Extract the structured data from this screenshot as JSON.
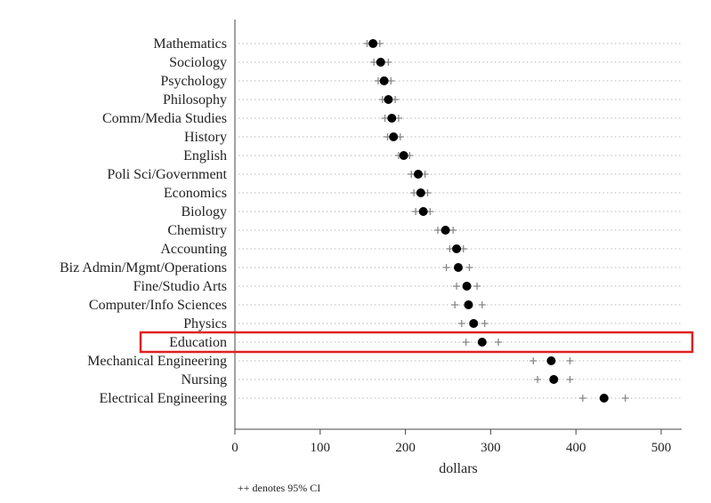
{
  "chart_data": {
    "type": "scatter",
    "xlabel": "dollars",
    "xlim": [
      0,
      520
    ],
    "xticks": [
      0,
      100,
      200,
      300,
      400,
      500
    ],
    "footnote": "++ denotes 95% CI",
    "highlight": "Education",
    "highlight_color": "#e02020",
    "point_color": "#000000",
    "ci_color": "#888888",
    "grid": "dotted horizontal per category",
    "categories": [
      "Mathematics",
      "Sociology",
      "Psychology",
      "Philosophy",
      "Comm/Media Studies",
      "History",
      "English",
      "Poli Sci/Government",
      "Economics",
      "Biology",
      "Chemistry",
      "Accounting",
      "Biz Admin/Mgmt/Operations",
      "Fine/Studio Arts",
      "Computer/Info Sciences",
      "Physics",
      "Education",
      "Mechanical Engineering",
      "Nursing",
      "Electrical Engineering"
    ],
    "values": [
      162,
      171,
      175,
      180,
      184,
      186,
      198,
      215,
      218,
      221,
      247,
      260,
      262,
      272,
      274,
      280,
      290,
      371,
      374,
      433
    ],
    "ci_low": [
      155,
      163,
      168,
      173,
      176,
      179,
      192,
      207,
      210,
      212,
      238,
      252,
      248,
      260,
      258,
      266,
      271,
      350,
      355,
      408
    ],
    "ci_high": [
      170,
      180,
      183,
      188,
      192,
      194,
      205,
      223,
      226,
      229,
      256,
      268,
      275,
      284,
      290,
      293,
      309,
      393,
      393,
      458
    ]
  }
}
